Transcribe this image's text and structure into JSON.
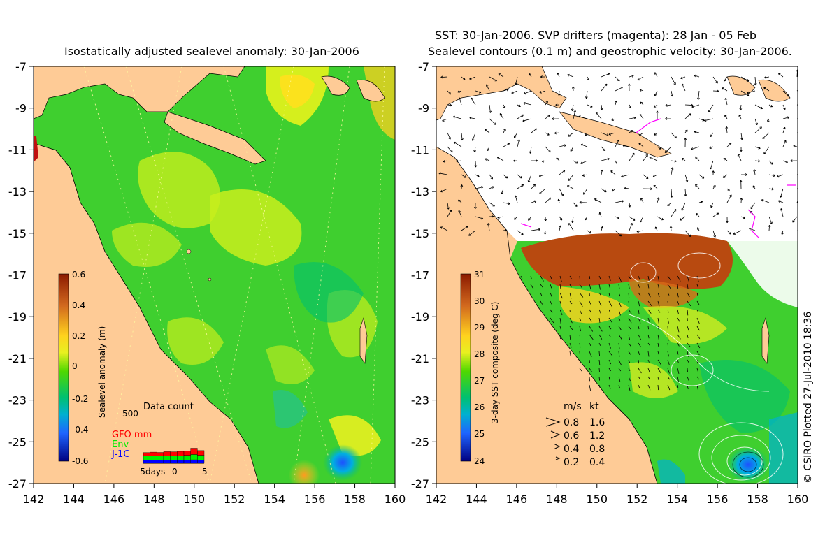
{
  "left_panel": {
    "title": "Isostatically adjusted sealevel anomaly: 30-Jan-2006",
    "y_ticks": [
      "-7",
      "-9",
      "-11",
      "-13",
      "-15",
      "-17",
      "-19",
      "-21",
      "-23",
      "-25",
      "-27"
    ],
    "x_ticks": [
      "142",
      "144",
      "146",
      "148",
      "150",
      "152",
      "154",
      "156",
      "158",
      "160"
    ],
    "colorbar": {
      "label": "Sealevel anomaly (m)",
      "ticks": [
        "0.6",
        "0.4",
        "0.2",
        "0",
        "-0.2",
        "-0.4",
        "-0.6"
      ],
      "colors": [
        "#8b1a00",
        "#d2691e",
        "#ffd21e",
        "#ffff40",
        "#6fdc00",
        "#00c850",
        "#00a0c8",
        "#1e64ff",
        "#000080"
      ]
    },
    "data_count": {
      "title": "Data count",
      "max_label": "500",
      "legend": [
        {
          "label": "GFO mm",
          "color": "#ff0000"
        },
        {
          "label": "Env",
          "color": "#00ee00"
        },
        {
          "label": "J-1C",
          "color": "#0000ff"
        }
      ],
      "axis_labels": [
        "-5days",
        "0",
        "5"
      ],
      "bars": [
        {
          "j1c": 100,
          "env": 130,
          "gfo": 110
        },
        {
          "j1c": 95,
          "env": 140,
          "gfo": 120
        },
        {
          "j1c": 100,
          "env": 130,
          "gfo": 115
        },
        {
          "j1c": 100,
          "env": 140,
          "gfo": 130
        },
        {
          "j1c": 100,
          "env": 130,
          "gfo": 135
        },
        {
          "j1c": 95,
          "env": 145,
          "gfo": 140
        },
        {
          "j1c": 100,
          "env": 150,
          "gfo": 145
        },
        {
          "j1c": 110,
          "env": 170,
          "gfo": 200
        },
        {
          "j1c": 105,
          "env": 150,
          "gfo": 150
        }
      ]
    }
  },
  "right_panel": {
    "title_line1": "SST: 30-Jan-2006. SVP drifters (magenta): 28 Jan - 05 Feb",
    "title_line2": "Sealevel contours (0.1 m) and geostrophic velocity: 30-Jan-2006.",
    "y_ticks": [
      "-7",
      "-9",
      "-11",
      "-13",
      "-15",
      "-17",
      "-19",
      "-21",
      "-23",
      "-25",
      "-27"
    ],
    "x_ticks": [
      "142",
      "144",
      "146",
      "148",
      "150",
      "152",
      "154",
      "156",
      "158",
      "160"
    ],
    "colorbar": {
      "label": "3-day SST composite (deg C)",
      "ticks": [
        "31",
        "30",
        "29",
        "28",
        "27",
        "26",
        "25",
        "24"
      ],
      "colors": [
        "#8b1a00",
        "#d2691e",
        "#ffd21e",
        "#ffff40",
        "#6fdc00",
        "#00c850",
        "#00a0c8",
        "#1e64ff",
        "#000080"
      ]
    },
    "velocity_legend": {
      "header_ms": "m/s",
      "header_kt": "kt",
      "rows": [
        {
          "ms": "0.8",
          "kt": "1.6"
        },
        {
          "ms": "0.6",
          "kt": "1.2"
        },
        {
          "ms": "0.4",
          "kt": "0.8"
        },
        {
          "ms": "0.2",
          "kt": "0.4"
        }
      ]
    },
    "credit": "© CSIRO Plotted 27-Jul-2010 18:36"
  },
  "colors": {
    "land": "#fecb96",
    "ocean_green": "#3fcf2f",
    "ocean_yellowgreen": "#b6ea1f",
    "warm_sst": "#b84a10",
    "no_data": "#ffffff",
    "drifter": "#ff00ff"
  }
}
